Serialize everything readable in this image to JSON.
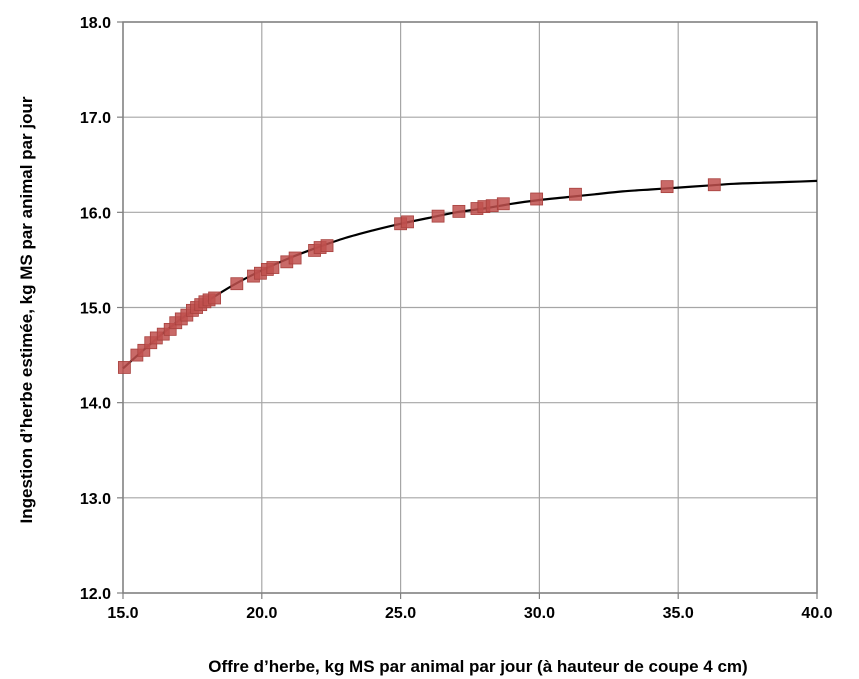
{
  "chart_data": {
    "type": "scatter",
    "title": "",
    "xlabel": "Offre d’herbe, kg MS par animal par jour (à hauteur de coupe 4 cm)",
    "ylabel": "Ingestion d’herbe estimée, kg MS par animal par jour",
    "xlim": [
      15.0,
      40.0
    ],
    "ylim": [
      12.0,
      18.0
    ],
    "x_ticks": [
      "15.0",
      "20.0",
      "25.0",
      "30.0",
      "35.0",
      "40.0"
    ],
    "y_ticks": [
      "12.0",
      "13.0",
      "14.0",
      "15.0",
      "16.0",
      "17.0",
      "18.0"
    ],
    "grid": true,
    "legend": "none",
    "marker_color": "#c0504d",
    "line_color": "#000000",
    "series": [
      {
        "kind": "points",
        "x": [
          15.05,
          15.5,
          15.75,
          16.0,
          16.2,
          16.45,
          16.7,
          16.9,
          17.1,
          17.3,
          17.5,
          17.65,
          17.8,
          17.95,
          18.1,
          18.3,
          19.1,
          19.7,
          19.95,
          20.2,
          20.4,
          20.9,
          21.2,
          21.9,
          22.1,
          22.35,
          25.0,
          25.25,
          26.35,
          27.1,
          27.75,
          28.0,
          28.3,
          28.7,
          29.9,
          31.3,
          34.6,
          36.3
        ],
        "y": [
          14.37,
          14.5,
          14.55,
          14.63,
          14.68,
          14.72,
          14.77,
          14.84,
          14.88,
          14.92,
          14.97,
          15.0,
          15.03,
          15.06,
          15.08,
          15.1,
          15.25,
          15.33,
          15.36,
          15.4,
          15.42,
          15.48,
          15.52,
          15.6,
          15.63,
          15.65,
          15.88,
          15.9,
          15.96,
          16.01,
          16.04,
          16.06,
          16.07,
          16.09,
          16.14,
          16.19,
          16.27,
          16.29
        ]
      },
      {
        "kind": "fit-curve",
        "x": [
          15.0,
          16.0,
          17.0,
          18.0,
          19.0,
          20.0,
          21.0,
          22.0,
          23.0,
          24.0,
          25.0,
          26.0,
          27.0,
          28.0,
          29.0,
          30.0,
          31.0,
          32.0,
          33.0,
          34.0,
          35.0,
          36.0,
          37.0,
          38.0,
          39.0,
          40.0
        ],
        "y": [
          14.36,
          14.62,
          14.86,
          15.06,
          15.24,
          15.39,
          15.52,
          15.63,
          15.73,
          15.81,
          15.88,
          15.94,
          16.0,
          16.04,
          16.09,
          16.13,
          16.16,
          16.19,
          16.22,
          16.24,
          16.26,
          16.28,
          16.3,
          16.31,
          16.32,
          16.33
        ]
      }
    ]
  }
}
